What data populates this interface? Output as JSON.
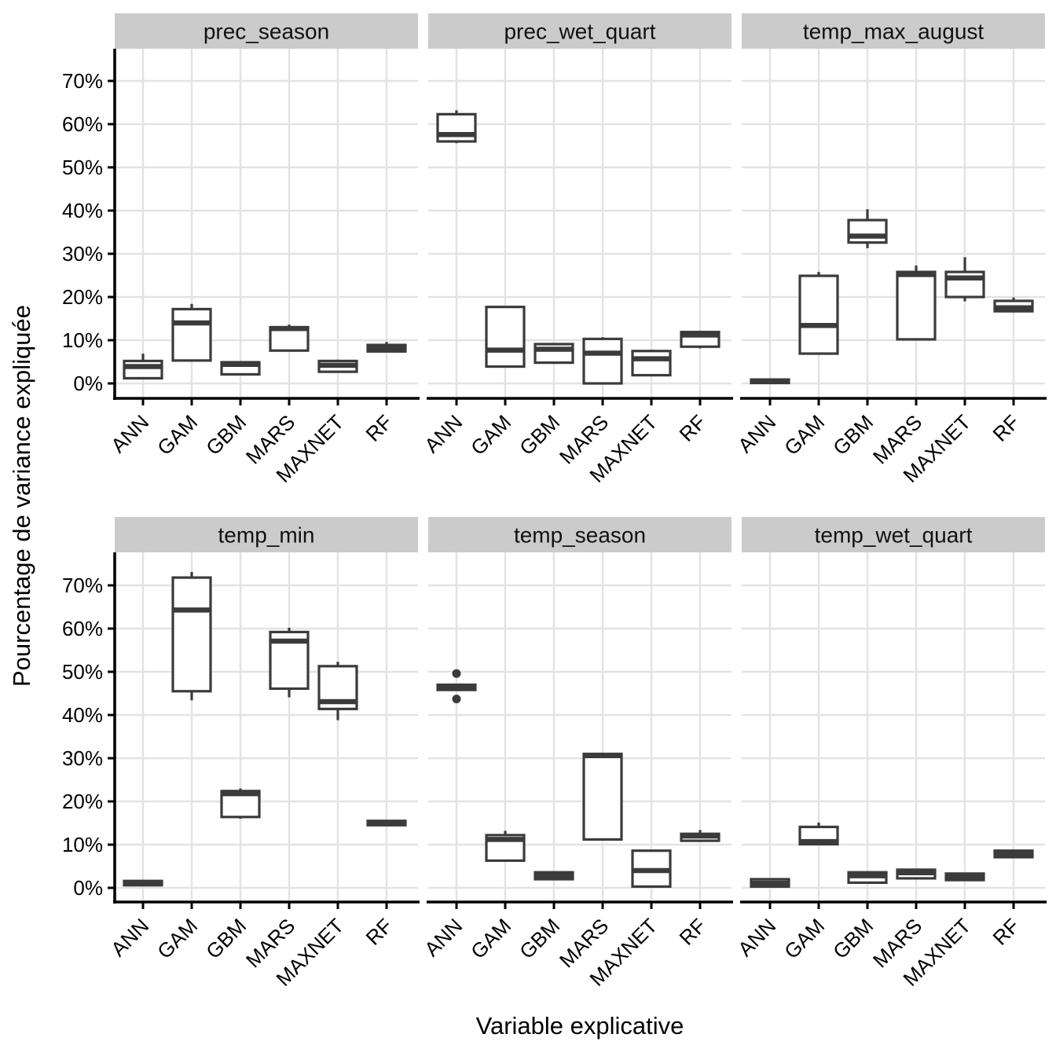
{
  "figure": {
    "y_axis_title": "Pourcentage de variance expliquée",
    "x_axis_title": "Variable explicative"
  },
  "style": {
    "panel_bg": "#ffffff",
    "strip_bg": "#cbcbcb",
    "strip_text_color": "#111111",
    "grid_color": "#e3e3e3",
    "box_color": "#3b3b3b",
    "box_fill": "#ffffff",
    "axis_color": "#000000",
    "tick_label_color": "#000000"
  },
  "chart_data": {
    "type": "boxplot",
    "title": "",
    "xlabel": "Variable explicative",
    "ylabel": "Pourcentage de variance expliquée",
    "y_unit": "percent",
    "ylim": [
      -3.5,
      77.5
    ],
    "y_ticks": [
      0,
      10,
      20,
      30,
      40,
      50,
      60,
      70
    ],
    "y_tick_labels": [
      "0%",
      "10%",
      "20%",
      "30%",
      "40%",
      "50%",
      "60%",
      "70%"
    ],
    "grid": "horizontal major lines every 10%, vertical line at each category",
    "legend": "none",
    "facet_layout": "2 rows x 3 cols",
    "categories": [
      "ANN",
      "GAM",
      "GBM",
      "MARS",
      "MAXNET",
      "RF"
    ],
    "facets": [
      {
        "label": "prec_season",
        "boxes": [
          {
            "model": "ANN",
            "whisker_low": 1.0,
            "q1": 1.2,
            "median": 3.9,
            "q3": 5.2,
            "whisker_high": 6.9,
            "outliers": []
          },
          {
            "model": "GAM",
            "whisker_low": 5.3,
            "q1": 5.3,
            "median": 14.0,
            "q3": 17.2,
            "whisker_high": 18.4,
            "outliers": []
          },
          {
            "model": "GBM",
            "whisker_low": 2.1,
            "q1": 2.1,
            "median": 4.4,
            "q3": 4.9,
            "whisker_high": 4.9,
            "outliers": []
          },
          {
            "model": "MARS",
            "whisker_low": 7.5,
            "q1": 7.6,
            "median": 12.7,
            "q3": 13.0,
            "whisker_high": 13.6,
            "outliers": []
          },
          {
            "model": "MAXNET",
            "whisker_low": 2.7,
            "q1": 2.7,
            "median": 4.2,
            "q3": 5.2,
            "whisker_high": 5.5,
            "outliers": []
          },
          {
            "model": "RF",
            "whisker_low": 7.4,
            "q1": 7.4,
            "median": 8.2,
            "q3": 8.9,
            "whisker_high": 9.6,
            "outliers": []
          }
        ]
      },
      {
        "label": "prec_wet_quart",
        "boxes": [
          {
            "model": "ANN",
            "whisker_low": 55.6,
            "q1": 56.0,
            "median": 57.6,
            "q3": 62.3,
            "whisker_high": 63.2,
            "outliers": []
          },
          {
            "model": "GAM",
            "whisker_low": 3.9,
            "q1": 3.9,
            "median": 7.7,
            "q3": 17.7,
            "whisker_high": 17.7,
            "outliers": []
          },
          {
            "model": "GBM",
            "whisker_low": 4.8,
            "q1": 4.8,
            "median": 7.9,
            "q3": 9.1,
            "whisker_high": 9.1,
            "outliers": []
          },
          {
            "model": "MARS",
            "whisker_low": 0.0,
            "q1": 0.0,
            "median": 7.0,
            "q3": 10.3,
            "whisker_high": 10.7,
            "outliers": []
          },
          {
            "model": "MAXNET",
            "whisker_low": 1.9,
            "q1": 1.9,
            "median": 5.7,
            "q3": 7.5,
            "whisker_high": 7.8,
            "outliers": []
          },
          {
            "model": "RF",
            "whisker_low": 8.1,
            "q1": 8.5,
            "median": 11.2,
            "q3": 11.9,
            "whisker_high": 12.2,
            "outliers": []
          }
        ]
      },
      {
        "label": "temp_max_august",
        "boxes": [
          {
            "model": "ANN",
            "whisker_low": 0.1,
            "q1": 0.1,
            "median": 0.5,
            "q3": 0.9,
            "whisker_high": 0.9,
            "outliers": []
          },
          {
            "model": "GAM",
            "whisker_low": 6.9,
            "q1": 6.9,
            "median": 13.4,
            "q3": 24.9,
            "whisker_high": 25.8,
            "outliers": []
          },
          {
            "model": "GBM",
            "whisker_low": 31.3,
            "q1": 32.6,
            "median": 34.1,
            "q3": 37.8,
            "whisker_high": 40.3,
            "outliers": []
          },
          {
            "model": "MARS",
            "whisker_low": 10.1,
            "q1": 10.2,
            "median": 25.2,
            "q3": 25.8,
            "whisker_high": 27.3,
            "outliers": []
          },
          {
            "model": "MAXNET",
            "whisker_low": 19.0,
            "q1": 20.0,
            "median": 24.4,
            "q3": 25.8,
            "whisker_high": 29.2,
            "outliers": []
          },
          {
            "model": "RF",
            "whisker_low": 16.4,
            "q1": 16.7,
            "median": 17.5,
            "q3": 19.1,
            "whisker_high": 19.9,
            "outliers": []
          }
        ]
      },
      {
        "label": "temp_min",
        "boxes": [
          {
            "model": "ANN",
            "whisker_low": 0.5,
            "q1": 0.6,
            "median": 1.1,
            "q3": 1.6,
            "whisker_high": 1.6,
            "outliers": []
          },
          {
            "model": "GAM",
            "whisker_low": 43.4,
            "q1": 45.5,
            "median": 64.3,
            "q3": 71.8,
            "whisker_high": 73.1,
            "outliers": []
          },
          {
            "model": "GBM",
            "whisker_low": 16.0,
            "q1": 16.4,
            "median": 21.8,
            "q3": 22.4,
            "whisker_high": 23.0,
            "outliers": []
          },
          {
            "model": "MARS",
            "whisker_low": 44.1,
            "q1": 46.1,
            "median": 57.1,
            "q3": 59.2,
            "whisker_high": 60.2,
            "outliers": []
          },
          {
            "model": "MAXNET",
            "whisker_low": 38.8,
            "q1": 41.4,
            "median": 43.1,
            "q3": 51.3,
            "whisker_high": 52.3,
            "outliers": []
          },
          {
            "model": "RF",
            "whisker_low": 14.5,
            "q1": 14.5,
            "median": 15.0,
            "q3": 15.5,
            "whisker_high": 15.5,
            "outliers": []
          }
        ]
      },
      {
        "label": "temp_season",
        "boxes": [
          {
            "model": "ANN",
            "whisker_low": 45.8,
            "q1": 45.8,
            "median": 46.4,
            "q3": 47.0,
            "whisker_high": 47.0,
            "outliers": [
              49.6,
              43.7
            ]
          },
          {
            "model": "GAM",
            "whisker_low": 6.3,
            "q1": 6.3,
            "median": 11.2,
            "q3": 12.2,
            "whisker_high": 13.2,
            "outliers": []
          },
          {
            "model": "GBM",
            "whisker_low": 2.0,
            "q1": 2.0,
            "median": 2.8,
            "q3": 3.6,
            "whisker_high": 3.6,
            "outliers": []
          },
          {
            "model": "MARS",
            "whisker_low": 11.2,
            "q1": 11.2,
            "median": 30.6,
            "q3": 31.0,
            "whisker_high": 31.0,
            "outliers": []
          },
          {
            "model": "MAXNET",
            "whisker_low": 0.3,
            "q1": 0.3,
            "median": 4.0,
            "q3": 8.6,
            "whisker_high": 8.6,
            "outliers": []
          },
          {
            "model": "RF",
            "whisker_low": 10.9,
            "q1": 10.9,
            "median": 12.0,
            "q3": 12.5,
            "whisker_high": 13.4,
            "outliers": []
          }
        ]
      },
      {
        "label": "temp_wet_quart",
        "boxes": [
          {
            "model": "ANN",
            "whisker_low": 0.3,
            "q1": 0.3,
            "median": 1.1,
            "q3": 2.0,
            "whisker_high": 2.0,
            "outliers": []
          },
          {
            "model": "GAM",
            "whisker_low": 10.1,
            "q1": 10.1,
            "median": 10.7,
            "q3": 14.1,
            "whisker_high": 15.1,
            "outliers": []
          },
          {
            "model": "GBM",
            "whisker_low": 1.2,
            "q1": 1.2,
            "median": 2.8,
            "q3": 3.6,
            "whisker_high": 3.6,
            "outliers": []
          },
          {
            "model": "MARS",
            "whisker_low": 2.2,
            "q1": 2.2,
            "median": 3.5,
            "q3": 4.2,
            "whisker_high": 4.4,
            "outliers": []
          },
          {
            "model": "MAXNET",
            "whisker_low": 1.8,
            "q1": 1.8,
            "median": 2.5,
            "q3": 3.3,
            "whisker_high": 3.3,
            "outliers": []
          },
          {
            "model": "RF",
            "whisker_low": 7.1,
            "q1": 7.1,
            "median": 7.9,
            "q3": 8.6,
            "whisker_high": 8.6,
            "outliers": []
          }
        ]
      }
    ]
  }
}
